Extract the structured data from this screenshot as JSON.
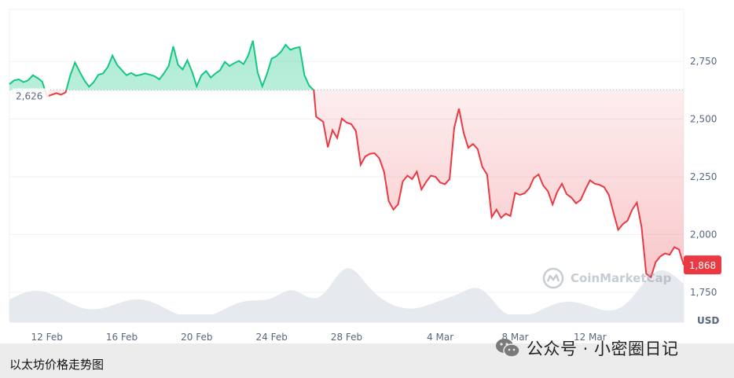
{
  "chart_data": {
    "type": "line",
    "series": [
      {
        "values": [
          {
            "x": "2024-02-10T00:00",
            "y": 2651
          },
          {
            "x": "2024-02-10T06:00",
            "y": 2668
          },
          {
            "x": "2024-02-10T12:00",
            "y": 2672
          },
          {
            "x": "2024-02-10T18:00",
            "y": 2660
          },
          {
            "x": "2024-02-11T00:00",
            "y": 2668
          },
          {
            "x": "2024-02-11T06:00",
            "y": 2690
          },
          {
            "x": "2024-02-11T12:00",
            "y": 2678
          },
          {
            "x": "2024-02-11T18:00",
            "y": 2662
          },
          {
            "x": "2024-02-12T00:00",
            "y": 2598
          },
          {
            "x": "2024-02-12T06:00",
            "y": 2605
          },
          {
            "x": "2024-02-12T12:00",
            "y": 2612
          },
          {
            "x": "2024-02-12T18:00",
            "y": 2606
          },
          {
            "x": "2024-02-13T00:00",
            "y": 2615
          },
          {
            "x": "2024-02-13T06:00",
            "y": 2690
          },
          {
            "x": "2024-02-13T12:00",
            "y": 2745
          },
          {
            "x": "2024-02-13T18:00",
            "y": 2705
          },
          {
            "x": "2024-02-14T00:00",
            "y": 2668
          },
          {
            "x": "2024-02-14T06:00",
            "y": 2640
          },
          {
            "x": "2024-02-14T12:00",
            "y": 2660
          },
          {
            "x": "2024-02-14T18:00",
            "y": 2692
          },
          {
            "x": "2024-02-15T00:00",
            "y": 2698
          },
          {
            "x": "2024-02-15T06:00",
            "y": 2725
          },
          {
            "x": "2024-02-15T12:00",
            "y": 2775
          },
          {
            "x": "2024-02-15T18:00",
            "y": 2735
          },
          {
            "x": "2024-02-16T00:00",
            "y": 2712
          },
          {
            "x": "2024-02-16T06:00",
            "y": 2690
          },
          {
            "x": "2024-02-16T12:00",
            "y": 2700
          },
          {
            "x": "2024-02-16T18:00",
            "y": 2688
          },
          {
            "x": "2024-02-17T00:00",
            "y": 2692
          },
          {
            "x": "2024-02-17T06:00",
            "y": 2698
          },
          {
            "x": "2024-02-17T12:00",
            "y": 2692
          },
          {
            "x": "2024-02-17T18:00",
            "y": 2686
          },
          {
            "x": "2024-02-18T00:00",
            "y": 2672
          },
          {
            "x": "2024-02-18T06:00",
            "y": 2698
          },
          {
            "x": "2024-02-18T12:00",
            "y": 2730
          },
          {
            "x": "2024-02-18T18:00",
            "y": 2815
          },
          {
            "x": "2024-02-19T00:00",
            "y": 2735
          },
          {
            "x": "2024-02-19T06:00",
            "y": 2715
          },
          {
            "x": "2024-02-19T12:00",
            "y": 2755
          },
          {
            "x": "2024-02-19T18:00",
            "y": 2705
          },
          {
            "x": "2024-02-20T00:00",
            "y": 2642
          },
          {
            "x": "2024-02-20T06:00",
            "y": 2690
          },
          {
            "x": "2024-02-20T12:00",
            "y": 2708
          },
          {
            "x": "2024-02-20T18:00",
            "y": 2680
          },
          {
            "x": "2024-02-21T00:00",
            "y": 2698
          },
          {
            "x": "2024-02-21T06:00",
            "y": 2712
          },
          {
            "x": "2024-02-21T12:00",
            "y": 2748
          },
          {
            "x": "2024-02-21T18:00",
            "y": 2730
          },
          {
            "x": "2024-02-22T00:00",
            "y": 2742
          },
          {
            "x": "2024-02-22T06:00",
            "y": 2752
          },
          {
            "x": "2024-02-22T12:00",
            "y": 2738
          },
          {
            "x": "2024-02-22T18:00",
            "y": 2775
          },
          {
            "x": "2024-02-23T00:00",
            "y": 2840
          },
          {
            "x": "2024-02-23T06:00",
            "y": 2702
          },
          {
            "x": "2024-02-23T12:00",
            "y": 2642
          },
          {
            "x": "2024-02-23T18:00",
            "y": 2695
          },
          {
            "x": "2024-02-24T00:00",
            "y": 2762
          },
          {
            "x": "2024-02-24T06:00",
            "y": 2772
          },
          {
            "x": "2024-02-24T12:00",
            "y": 2792
          },
          {
            "x": "2024-02-24T18:00",
            "y": 2822
          },
          {
            "x": "2024-02-25T00:00",
            "y": 2800
          },
          {
            "x": "2024-02-25T06:00",
            "y": 2808
          },
          {
            "x": "2024-02-25T12:00",
            "y": 2812
          },
          {
            "x": "2024-02-25T18:00",
            "y": 2690
          },
          {
            "x": "2024-02-26T00:00",
            "y": 2645
          },
          {
            "x": "2024-02-26T06:00",
            "y": 2625
          },
          {
            "x": "2024-02-26T09:00",
            "y": 2510
          },
          {
            "x": "2024-02-26T18:00",
            "y": 2488
          },
          {
            "x": "2024-02-27T00:00",
            "y": 2378
          },
          {
            "x": "2024-02-27T06:00",
            "y": 2452
          },
          {
            "x": "2024-02-27T12:00",
            "y": 2418
          },
          {
            "x": "2024-02-27T18:00",
            "y": 2502
          },
          {
            "x": "2024-02-28T00:00",
            "y": 2485
          },
          {
            "x": "2024-02-28T06:00",
            "y": 2478
          },
          {
            "x": "2024-02-28T12:00",
            "y": 2448
          },
          {
            "x": "2024-02-28T18:00",
            "y": 2302
          },
          {
            "x": "2024-02-29T00:00",
            "y": 2338
          },
          {
            "x": "2024-02-29T06:00",
            "y": 2350
          },
          {
            "x": "2024-02-29T12:00",
            "y": 2352
          },
          {
            "x": "2024-02-29T18:00",
            "y": 2330
          },
          {
            "x": "2024-03-01T00:00",
            "y": 2272
          },
          {
            "x": "2024-03-01T06:00",
            "y": 2145
          },
          {
            "x": "2024-03-01T12:00",
            "y": 2108
          },
          {
            "x": "2024-03-01T18:00",
            "y": 2130
          },
          {
            "x": "2024-03-02T00:00",
            "y": 2230
          },
          {
            "x": "2024-03-02T06:00",
            "y": 2255
          },
          {
            "x": "2024-03-02T12:00",
            "y": 2240
          },
          {
            "x": "2024-03-02T18:00",
            "y": 2272
          },
          {
            "x": "2024-03-03T00:00",
            "y": 2195
          },
          {
            "x": "2024-03-03T06:00",
            "y": 2228
          },
          {
            "x": "2024-03-03T12:00",
            "y": 2255
          },
          {
            "x": "2024-03-03T18:00",
            "y": 2250
          },
          {
            "x": "2024-03-04T00:00",
            "y": 2225
          },
          {
            "x": "2024-03-04T06:00",
            "y": 2218
          },
          {
            "x": "2024-03-04T12:00",
            "y": 2240
          },
          {
            "x": "2024-03-04T18:00",
            "y": 2462
          },
          {
            "x": "2024-03-05T00:00",
            "y": 2545
          },
          {
            "x": "2024-03-05T06:00",
            "y": 2440
          },
          {
            "x": "2024-03-05T12:00",
            "y": 2375
          },
          {
            "x": "2024-03-05T18:00",
            "y": 2392
          },
          {
            "x": "2024-03-06T00:00",
            "y": 2370
          },
          {
            "x": "2024-03-06T06:00",
            "y": 2292
          },
          {
            "x": "2024-03-06T12:00",
            "y": 2260
          },
          {
            "x": "2024-03-06T18:00",
            "y": 2075
          },
          {
            "x": "2024-03-07T00:00",
            "y": 2108
          },
          {
            "x": "2024-03-07T06:00",
            "y": 2072
          },
          {
            "x": "2024-03-07T12:00",
            "y": 2090
          },
          {
            "x": "2024-03-07T18:00",
            "y": 2080
          },
          {
            "x": "2024-03-08T00:00",
            "y": 2180
          },
          {
            "x": "2024-03-08T06:00",
            "y": 2172
          },
          {
            "x": "2024-03-08T12:00",
            "y": 2178
          },
          {
            "x": "2024-03-08T18:00",
            "y": 2200
          },
          {
            "x": "2024-03-09T00:00",
            "y": 2245
          },
          {
            "x": "2024-03-09T06:00",
            "y": 2260
          },
          {
            "x": "2024-03-09T12:00",
            "y": 2212
          },
          {
            "x": "2024-03-09T18:00",
            "y": 2188
          },
          {
            "x": "2024-03-10T00:00",
            "y": 2130
          },
          {
            "x": "2024-03-10T06:00",
            "y": 2185
          },
          {
            "x": "2024-03-10T12:00",
            "y": 2220
          },
          {
            "x": "2024-03-10T18:00",
            "y": 2175
          },
          {
            "x": "2024-03-11T00:00",
            "y": 2160
          },
          {
            "x": "2024-03-11T06:00",
            "y": 2135
          },
          {
            "x": "2024-03-11T12:00",
            "y": 2150
          },
          {
            "x": "2024-03-11T18:00",
            "y": 2195
          },
          {
            "x": "2024-03-12T00:00",
            "y": 2235
          },
          {
            "x": "2024-03-12T06:00",
            "y": 2220
          },
          {
            "x": "2024-03-12T12:00",
            "y": 2215
          },
          {
            "x": "2024-03-12T18:00",
            "y": 2205
          },
          {
            "x": "2024-03-13T00:00",
            "y": 2172
          },
          {
            "x": "2024-03-13T06:00",
            "y": 2095
          },
          {
            "x": "2024-03-13T12:00",
            "y": 2020
          },
          {
            "x": "2024-03-13T18:00",
            "y": 2045
          },
          {
            "x": "2024-03-14T00:00",
            "y": 2060
          },
          {
            "x": "2024-03-14T06:00",
            "y": 2108
          },
          {
            "x": "2024-03-14T12:00",
            "y": 2138
          },
          {
            "x": "2024-03-14T18:00",
            "y": 2032
          },
          {
            "x": "2024-03-15T00:00",
            "y": 1830
          },
          {
            "x": "2024-03-15T06:00",
            "y": 1815
          },
          {
            "x": "2024-03-15T12:00",
            "y": 1880
          },
          {
            "x": "2024-03-15T18:00",
            "y": 1905
          },
          {
            "x": "2024-03-16T00:00",
            "y": 1918
          },
          {
            "x": "2024-03-16T06:00",
            "y": 1912
          },
          {
            "x": "2024-03-16T12:00",
            "y": 1945
          },
          {
            "x": "2024-03-16T18:00",
            "y": 1935
          },
          {
            "x": "2024-03-17T00:00",
            "y": 1868
          }
        ]
      }
    ],
    "reference_value": 2626,
    "reference_label": "2,626",
    "current_value": 1868,
    "current_label": "1,868",
    "x_tick_labels": [
      {
        "x": "2024-02-12",
        "label": "12 Feb"
      },
      {
        "x": "2024-02-16",
        "label": "16 Feb"
      },
      {
        "x": "2024-02-20",
        "label": "20 Feb"
      },
      {
        "x": "2024-02-24",
        "label": "24 Feb"
      },
      {
        "x": "2024-02-28",
        "label": "28 Feb"
      },
      {
        "x": "2024-03-04",
        "label": "4 Mar"
      },
      {
        "x": "2024-03-08",
        "label": "8 Mar"
      },
      {
        "x": "2024-03-12",
        "label": "12 Mar"
      }
    ],
    "y_ticks": [
      {
        "value": 1750,
        "label": "1,750"
      },
      {
        "value": 2000,
        "label": "2,000"
      },
      {
        "value": 2250,
        "label": "2,250"
      },
      {
        "value": 2500,
        "label": "2,500"
      },
      {
        "value": 2750,
        "label": "2,750"
      }
    ],
    "xlim": [
      "2024-02-10",
      "2024-03-17"
    ],
    "ylim": [
      1620,
      2975
    ],
    "y_unit": "USD",
    "grid": true,
    "colors": {
      "above": "#16c784",
      "below": "#ea3943",
      "grid": "#eff2f5",
      "axis_text": "#58667e",
      "volume": "#e6e9ee"
    },
    "volume_shown": true
  },
  "watermarks": {
    "cmc": "CoinMarketCap",
    "wechat": "公众号 · 小密圈日记"
  },
  "caption": "以太坊价格走势图",
  "icons": {
    "cmc_logo": "coinmarketcap-logo-icon",
    "wechat_logo": "wechat-icon"
  }
}
